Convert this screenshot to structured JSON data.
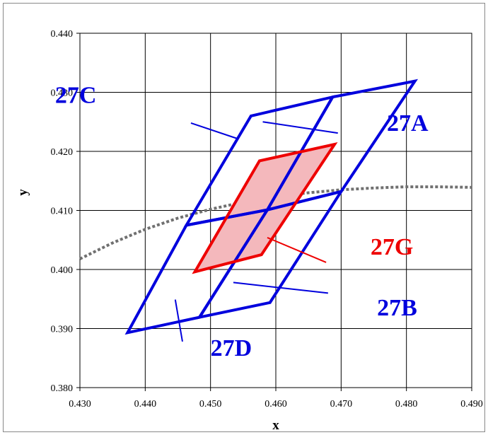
{
  "chart_data": {
    "type": "line",
    "xlabel": "x",
    "ylabel": "y",
    "xlim": [
      0.43,
      0.49
    ],
    "ylim": [
      0.38,
      0.44
    ],
    "x_ticks": [
      "0.430",
      "0.440",
      "0.450",
      "0.460",
      "0.470",
      "0.480",
      "0.490"
    ],
    "y_ticks": [
      "0.380",
      "0.390",
      "0.400",
      "0.410",
      "0.420",
      "0.430",
      "0.440"
    ],
    "grid": true,
    "colors": {
      "blue": "#0000dd",
      "red": "#ee0000",
      "red_fill": "#f4b8bc",
      "locus": "#707070"
    },
    "planckian_locus": [
      [
        0.43,
        0.4018
      ],
      [
        0.435,
        0.4045
      ],
      [
        0.44,
        0.4068
      ],
      [
        0.445,
        0.4087
      ],
      [
        0.45,
        0.4102
      ],
      [
        0.455,
        0.4114
      ],
      [
        0.46,
        0.4123
      ],
      [
        0.465,
        0.413
      ],
      [
        0.47,
        0.4135
      ],
      [
        0.475,
        0.4138
      ],
      [
        0.48,
        0.414
      ],
      [
        0.485,
        0.414
      ],
      [
        0.49,
        0.4139
      ]
    ],
    "regions": [
      {
        "name": "27A",
        "color": "#0000dd",
        "fill": false,
        "points": [
          [
            0.4587,
            0.4101
          ],
          [
            0.47,
            0.4132
          ],
          [
            0.4813,
            0.4319
          ],
          [
            0.4687,
            0.4292
          ]
        ]
      },
      {
        "name": "27B",
        "color": "#0000dd",
        "fill": false,
        "points": [
          [
            0.4483,
            0.3919
          ],
          [
            0.4591,
            0.3944
          ],
          [
            0.47,
            0.4132
          ],
          [
            0.4587,
            0.4101
          ]
        ]
      },
      {
        "name": "27C",
        "color": "#0000dd",
        "fill": false,
        "points": [
          [
            0.4562,
            0.426
          ],
          [
            0.4687,
            0.4292
          ],
          [
            0.4587,
            0.4101
          ],
          [
            0.4463,
            0.4075
          ]
        ]
      },
      {
        "name": "27D",
        "color": "#0000dd",
        "fill": false,
        "points": [
          [
            0.4373,
            0.3893
          ],
          [
            0.4483,
            0.3919
          ],
          [
            0.4587,
            0.4101
          ],
          [
            0.4463,
            0.4075
          ]
        ]
      },
      {
        "name": "27G",
        "color": "#ee0000",
        "fill": true,
        "points": [
          [
            0.4476,
            0.3996
          ],
          [
            0.4578,
            0.4025
          ],
          [
            0.469,
            0.4212
          ],
          [
            0.4575,
            0.4184
          ]
        ]
      }
    ],
    "annotations": [
      {
        "text": "27A",
        "color": "#0000dd",
        "text_at": [
          0.477,
          0.4235
        ],
        "leader": [
          [
            0.4695,
            0.4231
          ],
          [
            0.458,
            0.425
          ]
        ]
      },
      {
        "text": "27B",
        "color": "#0000dd",
        "text_at": [
          0.4755,
          0.3922
        ],
        "leader": [
          [
            0.468,
            0.396
          ],
          [
            0.4535,
            0.3978
          ]
        ]
      },
      {
        "text": "27C",
        "color": "#0000dd",
        "text_at": [
          0.4262,
          0.4282
        ],
        "leader": [
          [
            0.447,
            0.4248
          ],
          [
            0.454,
            0.4222
          ]
        ]
      },
      {
        "text": "27D",
        "color": "#0000dd",
        "text_at": [
          0.45,
          0.3854
        ],
        "leader": [
          [
            0.4457,
            0.3878
          ],
          [
            0.4446,
            0.3949
          ]
        ]
      },
      {
        "text": "27G",
        "color": "#ee0000",
        "text_at": [
          0.4745,
          0.4025
        ],
        "leader": [
          [
            0.4677,
            0.4012
          ],
          [
            0.4587,
            0.4054
          ]
        ]
      }
    ]
  }
}
